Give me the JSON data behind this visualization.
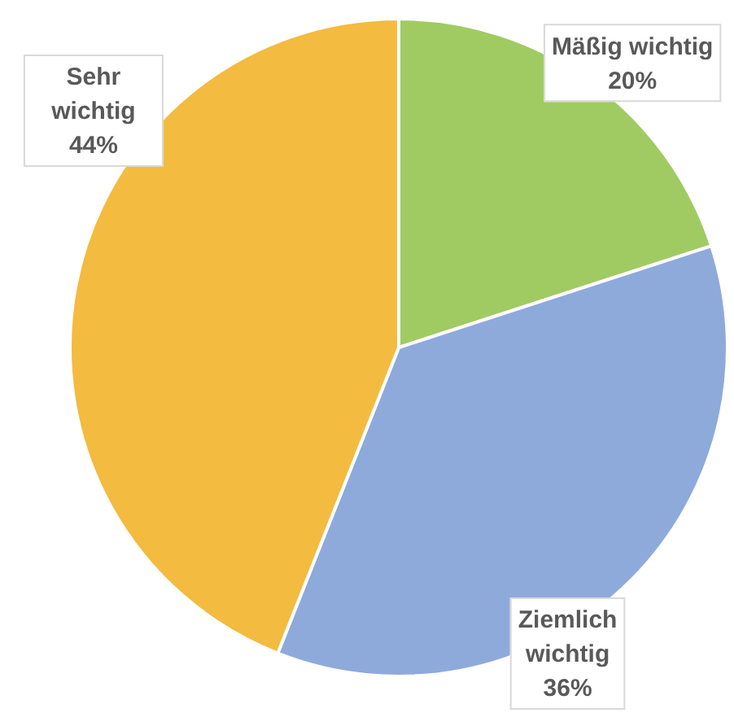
{
  "chart_data": {
    "type": "pie",
    "categories": [
      "Mäßig wichtig",
      "Ziemlich wichtig",
      "Sehr wichtig"
    ],
    "values": [
      20,
      36,
      44
    ],
    "colors": [
      "#a0cb62",
      "#8eaadb",
      "#f3bb3f"
    ],
    "value_labels": [
      "20%",
      "36%",
      "44%"
    ]
  }
}
